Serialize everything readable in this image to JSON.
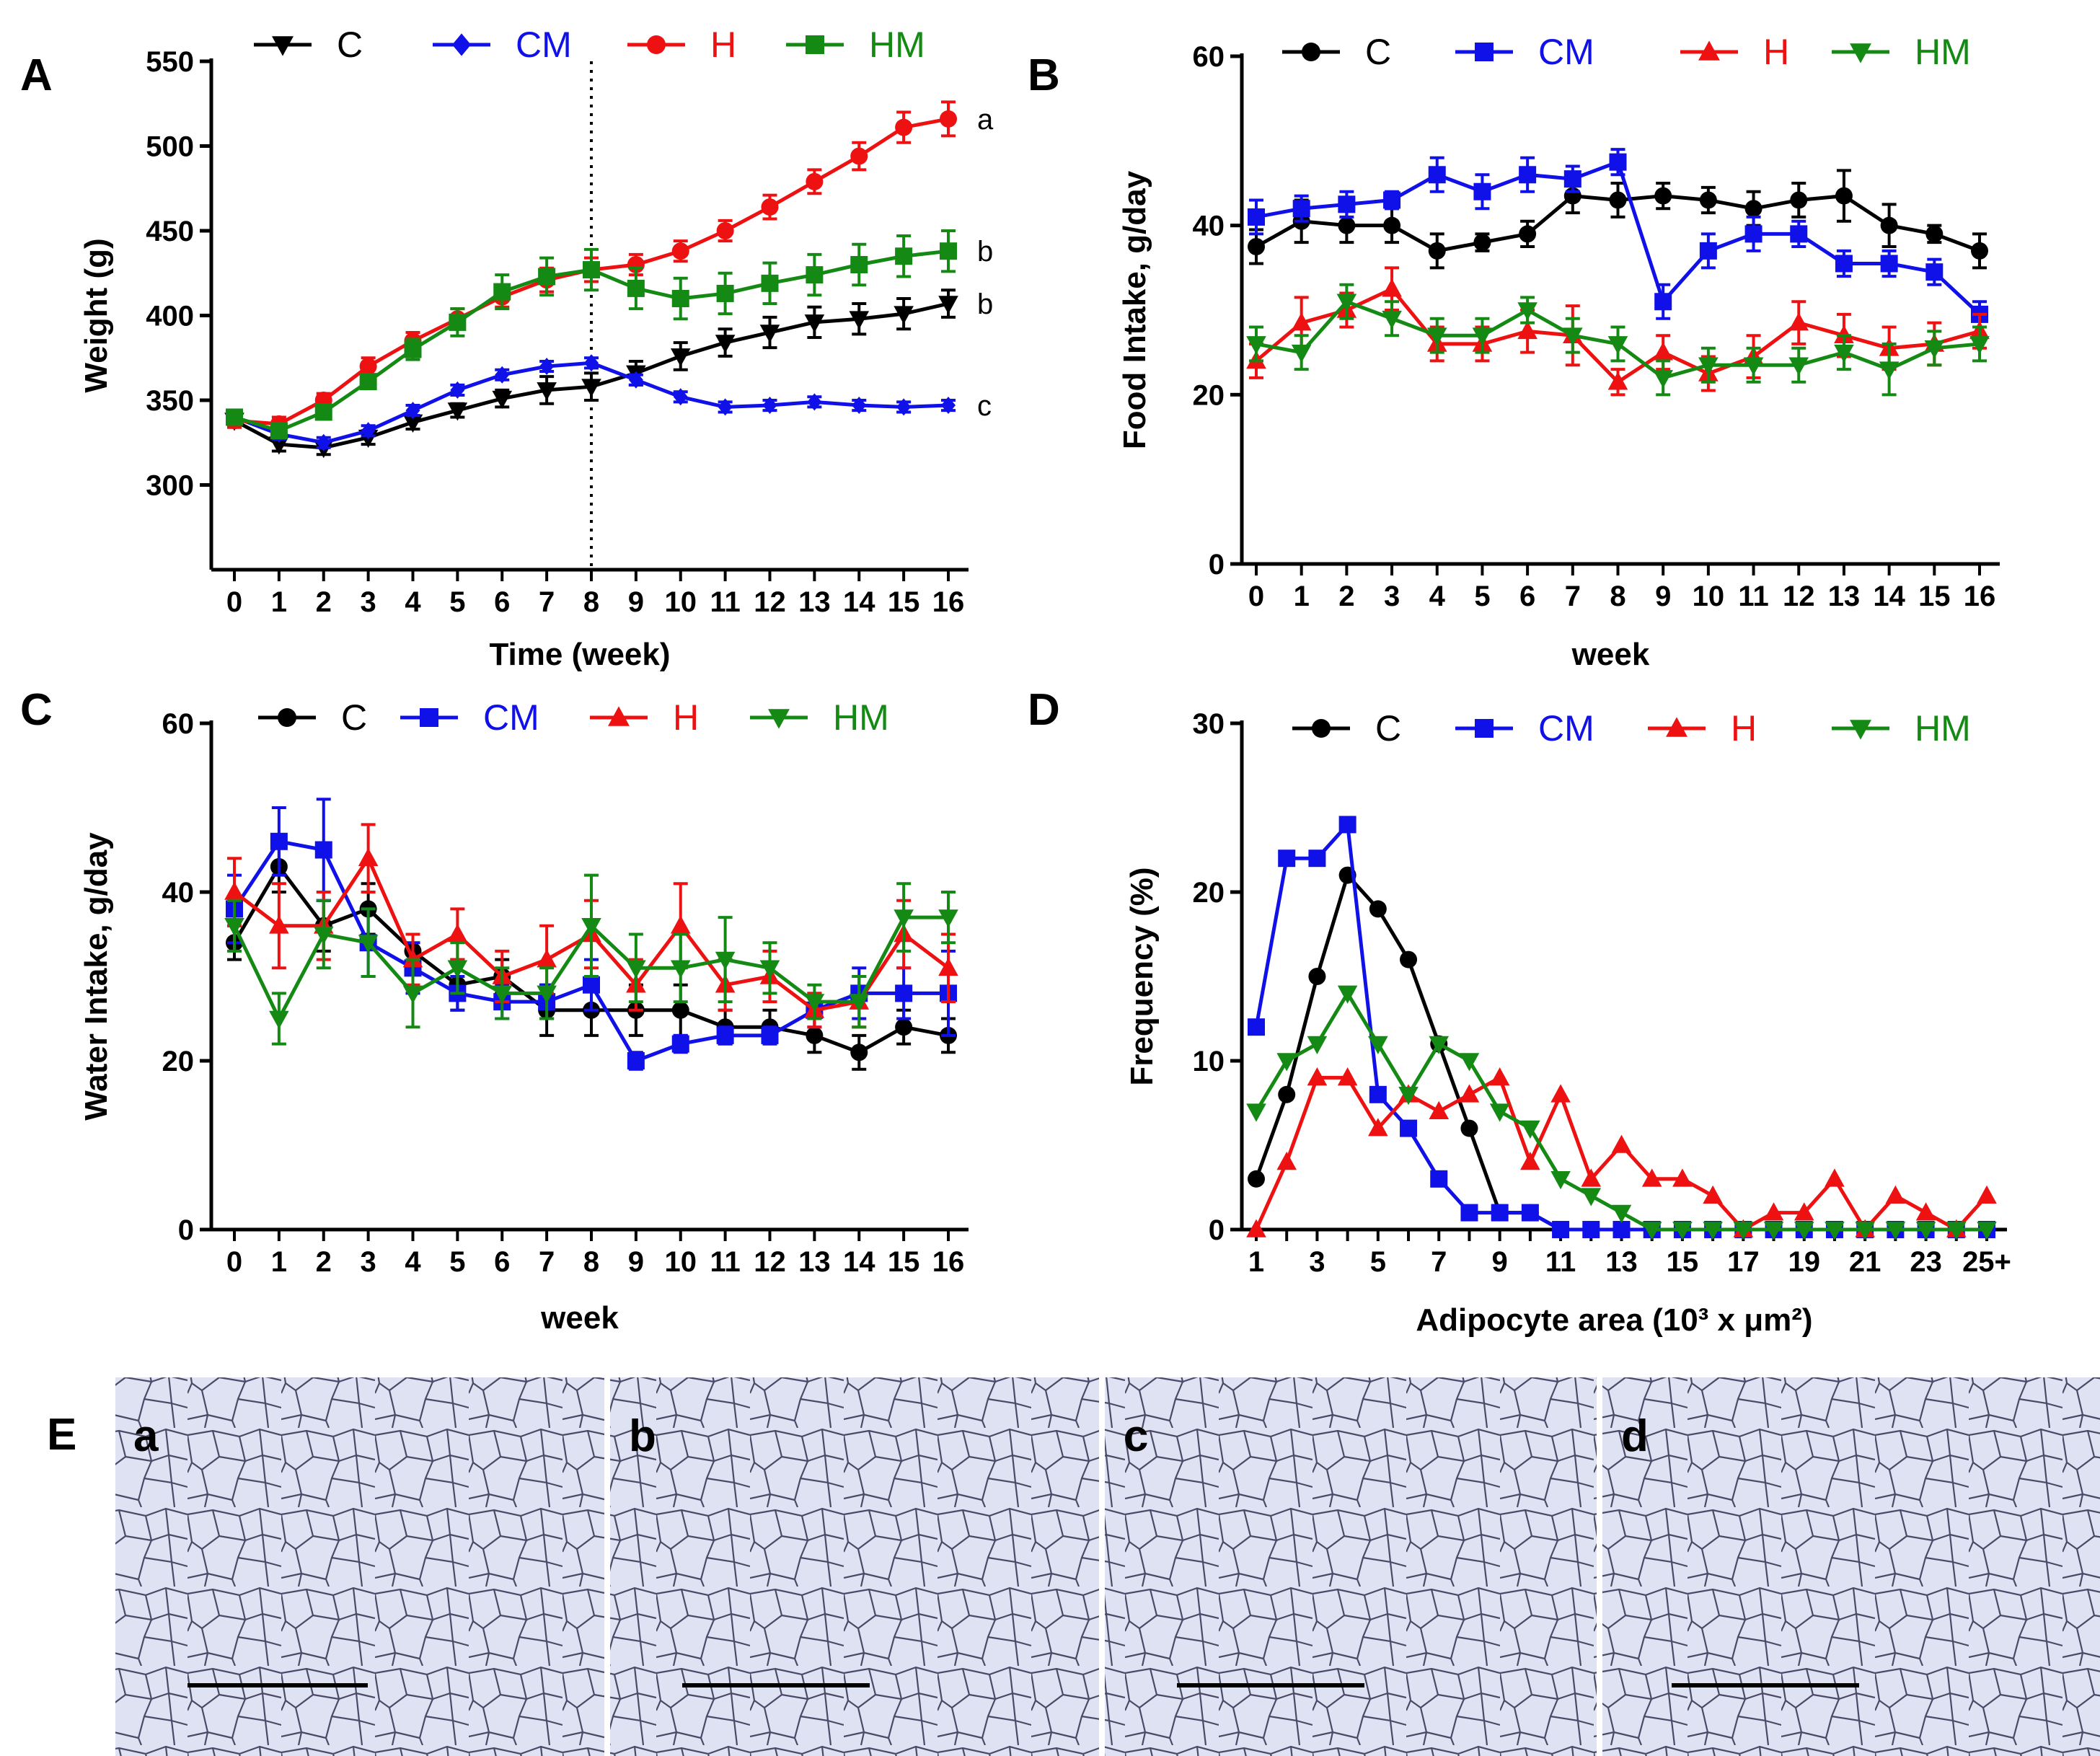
{
  "colors": {
    "C": "#000000",
    "CM": "#1010e8",
    "H": "#ee1111",
    "HM": "#148a14",
    "cell_bg": "#dfe2f2",
    "cell_edge": "#3a3a55"
  },
  "panels": {
    "A": {
      "label": "A"
    },
    "B": {
      "label": "B"
    },
    "C": {
      "label": "C"
    },
    "D": {
      "label": "D"
    },
    "E": {
      "label": "E",
      "images": [
        {
          "label": "a"
        },
        {
          "label": "b"
        },
        {
          "label": "c"
        },
        {
          "label": "d"
        }
      ]
    }
  },
  "chart_data": [
    {
      "id": "A",
      "type": "line",
      "title": "",
      "xlabel": "Time (week)",
      "ylabel": "Weight (g)",
      "x": [
        0,
        1,
        2,
        3,
        4,
        5,
        6,
        7,
        8,
        9,
        10,
        11,
        12,
        13,
        14,
        15,
        16
      ],
      "x_ticks": [
        "0",
        "1",
        "2",
        "3",
        "4",
        "5",
        "6",
        "7",
        "8",
        "9",
        "10",
        "11",
        "12",
        "13",
        "14",
        "15",
        "16"
      ],
      "ylim": [
        250,
        550
      ],
      "yticks": [
        300,
        350,
        400,
        450,
        500,
        550
      ],
      "vline_x": 8,
      "legend_position": "top",
      "series": [
        {
          "name": "C",
          "color": "#000000",
          "marker": "tri-down",
          "values": [
            338,
            324,
            322,
            328,
            337,
            344,
            351,
            356,
            358,
            366,
            376,
            384,
            390,
            396,
            398,
            401,
            407
          ],
          "errors": [
            4,
            4,
            4,
            4,
            4,
            4,
            5,
            8,
            8,
            7,
            8,
            8,
            9,
            9,
            9,
            9,
            8
          ]
        },
        {
          "name": "CM",
          "color": "#1010e8",
          "marker": "diamond",
          "values": [
            340,
            330,
            325,
            332,
            344,
            356,
            365,
            370,
            372,
            362,
            352,
            346,
            347,
            349,
            347,
            346,
            347
          ],
          "errors": [
            4,
            3,
            3,
            3,
            3,
            3,
            3,
            3,
            3,
            3,
            3,
            3,
            3,
            3,
            3,
            3,
            3
          ]
        },
        {
          "name": "H",
          "color": "#ee1111",
          "marker": "circle",
          "values": [
            338,
            336,
            350,
            370,
            385,
            398,
            411,
            421,
            427,
            430,
            438,
            450,
            464,
            479,
            494,
            511,
            516
          ],
          "errors": [
            4,
            4,
            4,
            5,
            5,
            6,
            6,
            7,
            7,
            6,
            6,
            6,
            7,
            7,
            8,
            9,
            10
          ]
        },
        {
          "name": "HM",
          "color": "#148a14",
          "marker": "square",
          "values": [
            340,
            332,
            343,
            361,
            380,
            396,
            414,
            423,
            427,
            416,
            410,
            413,
            419,
            424,
            430,
            435,
            438
          ],
          "errors": [
            4,
            4,
            4,
            4,
            6,
            8,
            10,
            11,
            12,
            12,
            12,
            12,
            12,
            12,
            12,
            12,
            12
          ]
        }
      ],
      "letters": [
        {
          "series": "H",
          "text": "a"
        },
        {
          "series": "HM",
          "text": "b"
        },
        {
          "series": "C",
          "text": "b"
        },
        {
          "series": "CM",
          "text": "c"
        }
      ]
    },
    {
      "id": "B",
      "type": "line",
      "title": "",
      "xlabel": "week",
      "ylabel": "Food Intake, g/day",
      "x": [
        0,
        1,
        2,
        3,
        4,
        5,
        6,
        7,
        8,
        9,
        10,
        11,
        12,
        13,
        14,
        15,
        16
      ],
      "x_ticks": [
        "0",
        "1",
        "2",
        "3",
        "4",
        "5",
        "6",
        "7",
        "8",
        "9",
        "10",
        "11",
        "12",
        "13",
        "14",
        "15",
        "16"
      ],
      "ylim": [
        0,
        60
      ],
      "yticks": [
        0,
        20,
        40,
        60
      ],
      "legend_position": "top",
      "series": [
        {
          "name": "C",
          "color": "#000000",
          "marker": "circle",
          "values": [
            37.5,
            40.5,
            40,
            40,
            37,
            38,
            39,
            43.5,
            43,
            43.5,
            43,
            42,
            43,
            43.5,
            40,
            39,
            37
          ],
          "errors": [
            2,
            2.5,
            2,
            2,
            2,
            1,
            1.5,
            2,
            2,
            1.5,
            1.5,
            2,
            2,
            3,
            2.5,
            1,
            2
          ]
        },
        {
          "name": "CM",
          "color": "#1010e8",
          "marker": "square",
          "values": [
            41,
            42,
            42.5,
            43,
            46,
            44,
            46,
            45.5,
            47.5,
            31,
            37,
            39,
            39,
            35.5,
            35.5,
            34.5,
            29.5
          ],
          "errors": [
            2,
            1.5,
            1.5,
            1,
            2,
            2,
            2,
            1.5,
            1.5,
            2,
            2,
            2,
            1.5,
            1.5,
            1.5,
            1.5,
            1.5
          ]
        },
        {
          "name": "H",
          "color": "#ee1111",
          "marker": "tri-up",
          "values": [
            24,
            28.5,
            30,
            32.5,
            26,
            26,
            27.5,
            27,
            21.5,
            25,
            22.5,
            24.5,
            28.5,
            27,
            25.5,
            26,
            27.5
          ],
          "errors": [
            2,
            3,
            2,
            2.5,
            2,
            2,
            2.5,
            3.5,
            1.5,
            2,
            2,
            2.5,
            2.5,
            2.5,
            2.5,
            2.5,
            2
          ]
        },
        {
          "name": "HM",
          "color": "#148a14",
          "marker": "tri-down",
          "values": [
            26,
            25,
            31,
            29,
            27,
            27,
            30,
            27,
            26,
            22,
            23.5,
            23.5,
            23.5,
            25,
            23,
            25.5,
            26
          ],
          "errors": [
            2,
            2,
            2,
            2,
            2,
            2,
            1.5,
            2,
            2,
            2,
            2,
            2,
            2,
            2,
            3,
            2,
            2
          ]
        }
      ]
    },
    {
      "id": "C",
      "type": "line",
      "title": "",
      "xlabel": "week",
      "ylabel": "Water Intake, g/day",
      "x": [
        0,
        1,
        2,
        3,
        4,
        5,
        6,
        7,
        8,
        9,
        10,
        11,
        12,
        13,
        14,
        15,
        16
      ],
      "x_ticks": [
        "0",
        "1",
        "2",
        "3",
        "4",
        "5",
        "6",
        "7",
        "8",
        "9",
        "10",
        "11",
        "12",
        "13",
        "14",
        "15",
        "16"
      ],
      "ylim": [
        0,
        60
      ],
      "yticks": [
        0,
        20,
        40,
        60
      ],
      "legend_position": "top",
      "series": [
        {
          "name": "C",
          "color": "#000000",
          "marker": "circle",
          "values": [
            34,
            43,
            36,
            38,
            33,
            29,
            30,
            26,
            26,
            26,
            26,
            24,
            24,
            23,
            21,
            24,
            23
          ],
          "errors": [
            2,
            3,
            3,
            3,
            2,
            3,
            2,
            3,
            3,
            3,
            3,
            2,
            2,
            2,
            2,
            2,
            2
          ]
        },
        {
          "name": "CM",
          "color": "#1010e8",
          "marker": "square",
          "values": [
            38,
            46,
            45,
            34,
            31,
            28,
            27,
            27,
            29,
            20,
            22,
            23,
            23,
            26,
            28,
            28,
            28
          ],
          "errors": [
            4,
            4,
            6,
            4,
            3,
            2,
            2,
            2,
            3,
            1,
            1,
            1,
            1,
            2,
            3,
            3,
            5
          ]
        },
        {
          "name": "H",
          "color": "#ee1111",
          "marker": "tri-up",
          "values": [
            40,
            36,
            36,
            44,
            32,
            35,
            30,
            32,
            35,
            29,
            36,
            29,
            30,
            26,
            27,
            35,
            31
          ],
          "errors": [
            4,
            5,
            4,
            4,
            3,
            3,
            3,
            4,
            4,
            3,
            5,
            3,
            3,
            2,
            3,
            4,
            4
          ]
        },
        {
          "name": "HM",
          "color": "#148a14",
          "marker": "tri-down",
          "values": [
            36,
            25,
            35,
            34,
            28,
            31,
            28,
            28,
            36,
            31,
            31,
            32,
            31,
            27,
            27,
            37,
            37
          ],
          "errors": [
            3,
            3,
            4,
            4,
            4,
            3,
            3,
            3,
            6,
            4,
            4,
            5,
            3,
            2,
            3,
            4,
            3
          ]
        }
      ]
    },
    {
      "id": "D",
      "type": "line",
      "title": "",
      "xlabel": "Adipocyte area (10³ x μm²)",
      "ylabel": "Frequency (%)",
      "x": [
        1,
        2,
        3,
        4,
        5,
        6,
        7,
        8,
        9,
        10,
        11,
        12,
        13,
        14,
        15,
        16,
        17,
        18,
        19,
        20,
        21,
        22,
        23,
        24,
        25
      ],
      "x_ticks": [
        "1",
        "3",
        "5",
        "7",
        "9",
        "11",
        "13",
        "15",
        "17",
        "19",
        "21",
        "23",
        "25+"
      ],
      "ylim": [
        0,
        30
      ],
      "yticks": [
        0,
        10,
        20,
        30
      ],
      "legend_position": "top",
      "series": [
        {
          "name": "C",
          "color": "#000000",
          "marker": "circle",
          "values": [
            3,
            8,
            15,
            21,
            19,
            16,
            11,
            6,
            1,
            1,
            0,
            0,
            0,
            0,
            0,
            0,
            0,
            0,
            0,
            0,
            0,
            0,
            0,
            0,
            0
          ]
        },
        {
          "name": "CM",
          "color": "#1010e8",
          "marker": "square",
          "values": [
            12,
            22,
            22,
            24,
            8,
            6,
            3,
            1,
            1,
            1,
            0,
            0,
            0,
            0,
            0,
            0,
            0,
            0,
            0,
            0,
            0,
            0,
            0,
            0,
            0
          ]
        },
        {
          "name": "H",
          "color": "#ee1111",
          "marker": "tri-up",
          "values": [
            0,
            4,
            9,
            9,
            6,
            8,
            7,
            8,
            9,
            4,
            8,
            3,
            5,
            3,
            3,
            2,
            0,
            1,
            1,
            3,
            0,
            2,
            1,
            0,
            2
          ]
        },
        {
          "name": "HM",
          "color": "#148a14",
          "marker": "tri-down",
          "values": [
            7,
            10,
            11,
            14,
            11,
            8,
            11,
            10,
            7,
            6,
            3,
            2,
            1,
            0,
            0,
            0,
            0,
            0,
            0,
            0,
            0,
            0,
            0,
            0,
            0
          ]
        }
      ]
    }
  ]
}
